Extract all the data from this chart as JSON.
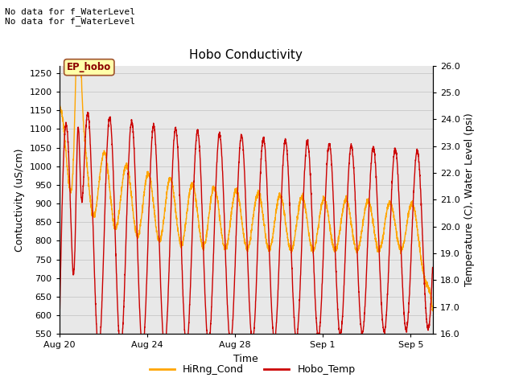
{
  "title": "Hobo Conductivity",
  "xlabel": "Time",
  "ylabel_left": "Contuctivity (uS/cm)",
  "ylabel_right": "Temperature (C), Water Level (psi)",
  "no_data_text_1": "No data for f_WaterLevel",
  "no_data_text_2": "No data for f_WaterLevel",
  "ep_hobo_label": "EP_hobo",
  "xlim_start": 0,
  "xlim_end": 17.0,
  "ylim_left": [
    550,
    1270
  ],
  "ylim_right": [
    16.0,
    26.0
  ],
  "xtick_positions": [
    0,
    4,
    8,
    12,
    16
  ],
  "xtick_labels": [
    "Aug 20",
    "Aug 24",
    "Aug 28",
    "Sep 1",
    "Sep 5"
  ],
  "ytick_left": [
    550,
    600,
    650,
    700,
    750,
    800,
    850,
    900,
    950,
    1000,
    1050,
    1100,
    1150,
    1200,
    1250
  ],
  "ytick_right": [
    16.0,
    17.0,
    18.0,
    19.0,
    20.0,
    21.0,
    22.0,
    23.0,
    24.0,
    25.0,
    26.0
  ],
  "grid_color": "#cccccc",
  "bg_color": "#e8e8e8",
  "outer_bg": "#ffffff",
  "line_cond_color": "#FFA500",
  "line_temp_color": "#CC0000",
  "legend_cond": "HiRng_Cond",
  "legend_temp": "Hobo_Temp",
  "title_fontsize": 11,
  "axis_label_fontsize": 9,
  "tick_fontsize": 8,
  "legend_fontsize": 9,
  "no_data_fontsize": 8
}
